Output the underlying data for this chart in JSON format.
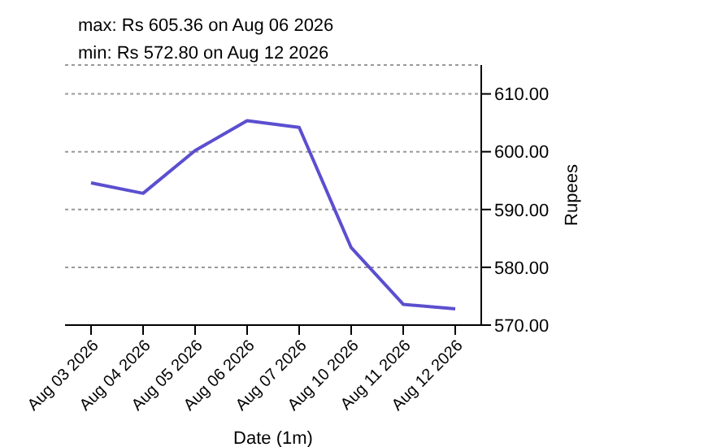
{
  "chart_data": {
    "type": "line",
    "xlabel": "Date (1m)",
    "ylabel": "Rupees",
    "annotations": [
      "max: Rs 605.36 on Aug 06 2026",
      "min: Rs 572.80 on Aug 12 2026"
    ],
    "categories": [
      "Aug 03 2026",
      "Aug 04 2026",
      "Aug 05 2026",
      "Aug 06 2026",
      "Aug 07 2026",
      "Aug 10 2026",
      "Aug 11 2026",
      "Aug 12 2026"
    ],
    "series": [
      {
        "color": "#5b4fcf",
        "values": [
          594.6,
          592.8,
          600.2,
          605.36,
          604.2,
          583.4,
          573.6,
          572.8
        ]
      }
    ],
    "ylim": [
      570,
      615
    ],
    "yticks": [
      {
        "value": 570,
        "label": "570.00"
      },
      {
        "value": 580,
        "label": "580.00"
      },
      {
        "value": 590,
        "label": "590.00"
      },
      {
        "value": 600,
        "label": "600.00"
      },
      {
        "value": 610,
        "label": "610.00"
      }
    ],
    "grid": "y",
    "marker": "none",
    "line_style": "solid"
  }
}
